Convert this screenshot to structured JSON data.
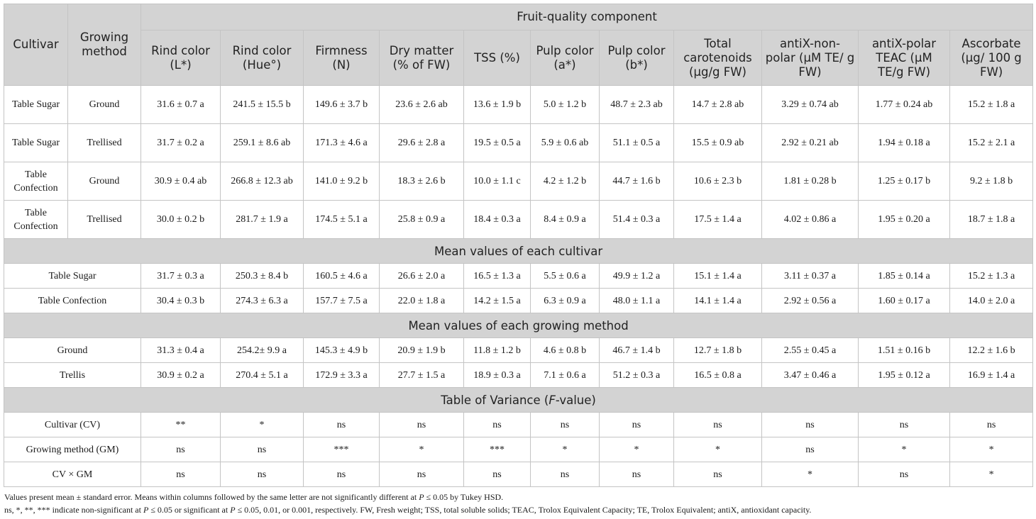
{
  "table": {
    "group_header": "Fruit-quality component",
    "col_cultivar": "Cultivar",
    "col_method": "Growing method",
    "columns": [
      "Rind color (L*)",
      "Rind color (Hue°)",
      "Firmness (N)",
      "Dry matter (% of FW)",
      "TSS (%)",
      "Pulp color (a*)",
      "Pulp color (b*)",
      "Total carotenoids (µg/g FW)",
      "antiX-non-polar (µM TE/ g FW)",
      "antiX-polar TEAC (µM TE/g FW)",
      "Ascorbate (µg/ 100 g FW)"
    ],
    "rows": [
      {
        "cultivar": "Table Sugar",
        "method": "Ground",
        "values": [
          "31.6 ± 0.7 a",
          "241.5 ± 15.5 b",
          "149.6 ± 3.7 b",
          "23.6 ± 2.6 ab",
          "13.6 ± 1.9 b",
          "5.0 ± 1.2 b",
          "48.7 ± 2.3 ab",
          "14.7 ± 2.8 ab",
          "3.29 ± 0.74 ab",
          "1.77 ± 0.24 ab",
          "15.2 ± 1.8 a"
        ]
      },
      {
        "cultivar": "Table Sugar",
        "method": "Trellised",
        "values": [
          "31.7 ± 0.2 a",
          "259.1 ± 8.6 ab",
          "171.3 ± 4.6 a",
          "29.6 ± 2.8 a",
          "19.5 ± 0.5 a",
          "5.9 ± 0.6 ab",
          "51.1 ± 0.5 a",
          "15.5 ± 0.9 ab",
          "2.92 ± 0.21 ab",
          "1.94 ± 0.18 a",
          "15.2 ± 2.1 a"
        ]
      },
      {
        "cultivar": "Table Confection",
        "method": "Ground",
        "values": [
          "30.9 ± 0.4 ab",
          "266.8 ± 12.3 ab",
          "141.0 ± 9.2 b",
          "18.3 ± 2.6 b",
          "10.0 ± 1.1 c",
          "4.2 ± 1.2 b",
          "44.7 ± 1.6 b",
          "10.6 ± 2.3 b",
          "1.81 ± 0.28 b",
          "1.25 ± 0.17 b",
          "9.2 ± 1.8 b"
        ]
      },
      {
        "cultivar": "Table Confection",
        "method": "Trellised",
        "values": [
          "30.0 ± 0.2 b",
          "281.7 ± 1.9 a",
          "174.5 ± 5.1 a",
          "25.8 ± 0.9 a",
          "18.4 ± 0.3 a",
          "8.4 ± 0.9 a",
          "51.4 ± 0.3 a",
          "17.5 ± 1.4 a",
          "4.02 ± 0.86 a",
          "1.95 ± 0.20 a",
          "18.7 ± 1.8 a"
        ]
      }
    ],
    "sections": {
      "cultivar_means": {
        "title": "Mean values of each cultivar",
        "rows": [
          {
            "label": "Table Sugar",
            "values": [
              "31.7 ± 0.3 a",
              "250.3 ± 8.4 b",
              "160.5 ± 4.6 a",
              "26.6 ± 2.0 a",
              "16.5 ± 1.3 a",
              "5.5 ± 0.6 a",
              "49.9 ± 1.2 a",
              "15.1 ± 1.4 a",
              "3.11 ± 0.37 a",
              "1.85 ± 0.14 a",
              "15.2 ± 1.3 a"
            ]
          },
          {
            "label": "Table Confection",
            "values": [
              "30.4 ± 0.3 b",
              "274.3 ± 6.3 a",
              "157.7 ± 7.5 a",
              "22.0 ± 1.8 a",
              "14.2 ± 1.5 a",
              "6.3 ± 0.9 a",
              "48.0 ± 1.1 a",
              "14.1 ± 1.4 a",
              "2.92 ± 0.56 a",
              "1.60 ± 0.17 a",
              "14.0 ± 2.0 a"
            ]
          }
        ]
      },
      "method_means": {
        "title": "Mean values of each growing method",
        "rows": [
          {
            "label": "Ground",
            "values": [
              "31.3 ± 0.4 a",
              "254.2± 9.9 a",
              "145.3 ± 4.9 b",
              "20.9 ± 1.9 b",
              "11.8 ± 1.2 b",
              "4.6 ± 0.8 b",
              "46.7 ± 1.4 b",
              "12.7 ± 1.8 b",
              "2.55 ± 0.45 a",
              "1.51 ± 0.16 b",
              "12.2 ± 1.6 b"
            ]
          },
          {
            "label": "Trellis",
            "values": [
              "30.9 ± 0.2 a",
              "270.4 ± 5.1 a",
              "172.9 ± 3.3 a",
              "27.7 ± 1.5 a",
              "18.9 ± 0.3 a",
              "7.1 ± 0.6 a",
              "51.2 ± 0.3 a",
              "16.5 ± 0.8 a",
              "3.47 ± 0.46 a",
              "1.95 ± 0.12 a",
              "16.9 ± 1.4 a"
            ]
          }
        ]
      },
      "variance": {
        "title_pre": "Table of Variance (",
        "title_italic": "F",
        "title_post": "-value)",
        "rows": [
          {
            "label": "Cultivar (CV)",
            "values": [
              "**",
              "*",
              "ns",
              "ns",
              "ns",
              "ns",
              "ns",
              "ns",
              "ns",
              "ns",
              "ns"
            ]
          },
          {
            "label": "Growing method (GM)",
            "values": [
              "ns",
              "ns",
              "***",
              "*",
              "***",
              "*",
              "*",
              "*",
              "ns",
              "*",
              "*"
            ]
          },
          {
            "label": "CV × GM",
            "values": [
              "ns",
              "ns",
              "ns",
              "ns",
              "ns",
              "ns",
              "ns",
              "ns",
              "*",
              "ns",
              "*"
            ]
          }
        ]
      }
    }
  },
  "footnotes": {
    "line1_a": "Values present mean ± standard error. Means within columns followed by the same letter are not significantly different at ",
    "p_symbol": "P",
    "line1_b": " ≤ 0.05 by Tukey HSD.",
    "line2_a": "ns, *, **, *** indicate non-significant at ",
    "line2_b": " ≤ 0.05 or significant at ",
    "line2_c": " ≤ 0.05, 0.01, or 0.001, respectively. FW, Fresh weight; TSS, total soluble solids; TEAC, Trolox Equivalent Capacity; TE, Trolox Equivalent; antiX, antioxidant capacity."
  }
}
